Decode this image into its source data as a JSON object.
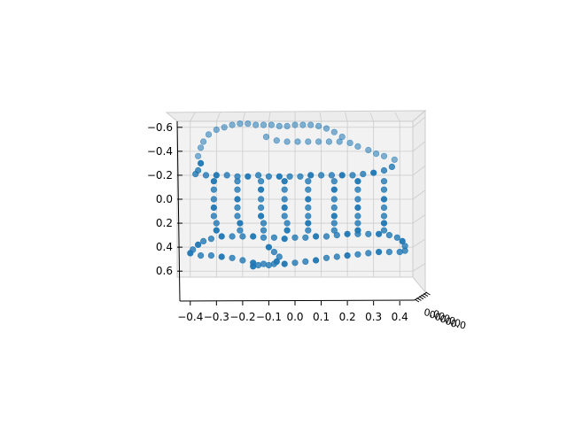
{
  "chart_data": {
    "type": "scatter",
    "projection": "3d",
    "title": "",
    "xlabel": "",
    "ylabel": "",
    "zlabel": "",
    "grid": true,
    "x_ticks": [
      "−0.4",
      "−0.3",
      "−0.2",
      "−0.1",
      "0.0",
      "0.1",
      "0.2",
      "0.3",
      "0.4"
    ],
    "y_ticks": [
      "−0.6",
      "−0.4",
      "−0.2",
      "0.0",
      "0.2",
      "0.4",
      "0.6"
    ],
    "z_ticks": [
      "0.0",
      "0.0",
      "0.0",
      "0.0",
      "0.0",
      "0.0"
    ],
    "xlim": [
      -0.45,
      0.45
    ],
    "ylim": [
      -0.65,
      0.65
    ],
    "marker_color": "#1f77b4",
    "pane_color": "#f2f2f2",
    "grid_color": "#cccccc",
    "series": [
      {
        "points": [
          [
            -0.35,
            -0.48
          ],
          [
            -0.33,
            -0.54
          ],
          [
            -0.3,
            -0.58
          ],
          [
            -0.27,
            -0.6
          ],
          [
            -0.24,
            -0.62
          ],
          [
            -0.21,
            -0.63
          ],
          [
            -0.18,
            -0.63
          ],
          [
            -0.15,
            -0.62
          ],
          [
            -0.12,
            -0.62
          ],
          [
            -0.09,
            -0.62
          ],
          [
            -0.06,
            -0.61
          ],
          [
            -0.03,
            -0.61
          ],
          [
            0.0,
            -0.62
          ],
          [
            0.03,
            -0.62
          ],
          [
            0.06,
            -0.62
          ],
          [
            0.09,
            -0.61
          ],
          [
            0.12,
            -0.59
          ],
          [
            0.15,
            -0.56
          ],
          [
            0.18,
            -0.52
          ],
          [
            0.21,
            -0.47
          ],
          [
            0.24,
            -0.44
          ],
          [
            0.28,
            -0.41
          ],
          [
            -0.36,
            -0.43
          ],
          [
            -0.37,
            -0.36
          ],
          [
            -0.36,
            -0.3
          ],
          [
            -0.37,
            -0.24
          ],
          [
            -0.11,
            -0.52
          ],
          [
            -0.07,
            -0.49
          ],
          [
            -0.03,
            -0.48
          ],
          [
            0.01,
            -0.48
          ],
          [
            0.05,
            -0.48
          ],
          [
            0.09,
            -0.48
          ],
          [
            0.13,
            -0.48
          ],
          [
            0.17,
            -0.48
          ],
          [
            -0.38,
            -0.21
          ],
          [
            -0.34,
            -0.2
          ],
          [
            -0.3,
            -0.2
          ],
          [
            -0.26,
            -0.2
          ],
          [
            -0.22,
            -0.19
          ],
          [
            -0.18,
            -0.19
          ],
          [
            -0.14,
            -0.2
          ],
          [
            -0.1,
            -0.19
          ],
          [
            -0.06,
            -0.19
          ],
          [
            -0.02,
            -0.19
          ],
          [
            0.02,
            -0.19
          ],
          [
            0.06,
            -0.2
          ],
          [
            0.1,
            -0.2
          ],
          [
            0.14,
            -0.2
          ],
          [
            0.18,
            -0.2
          ],
          [
            0.22,
            -0.2
          ],
          [
            0.26,
            -0.21
          ],
          [
            0.3,
            -0.22
          ],
          [
            0.34,
            -0.24
          ],
          [
            0.37,
            -0.27
          ],
          [
            0.38,
            -0.33
          ],
          [
            0.34,
            -0.36
          ],
          [
            0.31,
            -0.38
          ],
          [
            -0.31,
            -0.15
          ],
          [
            -0.31,
            -0.08
          ],
          [
            -0.31,
            0.0
          ],
          [
            -0.31,
            0.07
          ],
          [
            -0.31,
            0.14
          ],
          [
            -0.3,
            0.2
          ],
          [
            -0.3,
            0.26
          ],
          [
            -0.22,
            -0.15
          ],
          [
            -0.22,
            -0.08
          ],
          [
            -0.22,
            0.0
          ],
          [
            -0.22,
            0.07
          ],
          [
            -0.22,
            0.14
          ],
          [
            -0.21,
            0.2
          ],
          [
            -0.21,
            0.26
          ],
          [
            -0.13,
            -0.15
          ],
          [
            -0.13,
            -0.08
          ],
          [
            -0.13,
            0.0
          ],
          [
            -0.13,
            0.07
          ],
          [
            -0.13,
            0.14
          ],
          [
            -0.12,
            0.2
          ],
          [
            -0.12,
            0.26
          ],
          [
            -0.04,
            -0.15
          ],
          [
            -0.04,
            -0.08
          ],
          [
            -0.04,
            0.0
          ],
          [
            -0.04,
            0.07
          ],
          [
            -0.04,
            0.14
          ],
          [
            -0.03,
            0.2
          ],
          [
            -0.03,
            0.26
          ],
          [
            0.05,
            -0.15
          ],
          [
            0.05,
            -0.08
          ],
          [
            0.05,
            0.0
          ],
          [
            0.05,
            0.07
          ],
          [
            0.05,
            0.14
          ],
          [
            0.05,
            0.2
          ],
          [
            0.05,
            0.26
          ],
          [
            0.15,
            -0.15
          ],
          [
            0.15,
            -0.08
          ],
          [
            0.15,
            0.0
          ],
          [
            0.15,
            0.07
          ],
          [
            0.15,
            0.14
          ],
          [
            0.15,
            0.2
          ],
          [
            0.15,
            0.26
          ],
          [
            0.24,
            -0.15
          ],
          [
            0.24,
            -0.08
          ],
          [
            0.24,
            0.0
          ],
          [
            0.24,
            0.07
          ],
          [
            0.24,
            0.14
          ],
          [
            0.24,
            0.2
          ],
          [
            0.24,
            0.26
          ],
          [
            0.34,
            -0.15
          ],
          [
            0.34,
            -0.08
          ],
          [
            0.34,
            0.0
          ],
          [
            0.34,
            0.07
          ],
          [
            0.34,
            0.14
          ],
          [
            0.34,
            0.2
          ],
          [
            0.34,
            0.26
          ],
          [
            -0.39,
            0.42
          ],
          [
            -0.37,
            0.38
          ],
          [
            -0.35,
            0.35
          ],
          [
            -0.32,
            0.33
          ],
          [
            -0.28,
            0.31
          ],
          [
            -0.24,
            0.31
          ],
          [
            -0.2,
            0.31
          ],
          [
            -0.16,
            0.31
          ],
          [
            -0.12,
            0.32
          ],
          [
            -0.08,
            0.32
          ],
          [
            -0.04,
            0.33
          ],
          [
            0.0,
            0.32
          ],
          [
            0.04,
            0.32
          ],
          [
            0.08,
            0.31
          ],
          [
            0.12,
            0.31
          ],
          [
            0.16,
            0.3
          ],
          [
            0.2,
            0.29
          ],
          [
            0.24,
            0.29
          ],
          [
            0.28,
            0.29
          ],
          [
            0.32,
            0.29
          ],
          [
            0.36,
            0.3
          ],
          [
            0.39,
            0.32
          ],
          [
            0.41,
            0.35
          ],
          [
            0.42,
            0.39
          ],
          [
            0.42,
            0.43
          ],
          [
            -0.4,
            0.45
          ],
          [
            -0.36,
            0.47
          ],
          [
            -0.32,
            0.47
          ],
          [
            -0.28,
            0.48
          ],
          [
            -0.24,
            0.49
          ],
          [
            -0.2,
            0.51
          ],
          [
            -0.16,
            0.53
          ],
          [
            -0.12,
            0.54
          ],
          [
            -0.08,
            0.54
          ],
          [
            -0.04,
            0.54
          ],
          [
            0.0,
            0.53
          ],
          [
            0.04,
            0.52
          ],
          [
            0.08,
            0.51
          ],
          [
            0.12,
            0.49
          ],
          [
            0.16,
            0.48
          ],
          [
            0.2,
            0.47
          ],
          [
            0.24,
            0.46
          ],
          [
            0.28,
            0.45
          ],
          [
            0.32,
            0.44
          ],
          [
            0.36,
            0.44
          ],
          [
            0.4,
            0.44
          ],
          [
            -0.1,
            0.4
          ],
          [
            -0.08,
            0.44
          ],
          [
            -0.06,
            0.48
          ],
          [
            -0.07,
            0.52
          ],
          [
            -0.1,
            0.55
          ],
          [
            -0.14,
            0.55
          ],
          [
            -0.16,
            0.56
          ]
        ]
      }
    ]
  }
}
